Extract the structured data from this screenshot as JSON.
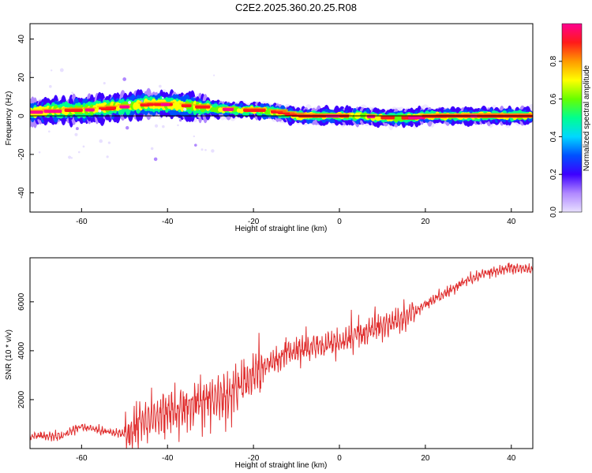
{
  "title": "C2E2.2025.360.20.25.R08",
  "colors": {
    "snr_line": "#e03030",
    "colormap": [
      "#e8e0ff",
      "#b088ff",
      "#3d00ff",
      "#0050ff",
      "#00d8ff",
      "#00ff90",
      "#66ff00",
      "#ffff00",
      "#ff9a00",
      "#ff1a1a",
      "#ff0090"
    ]
  },
  "chart_data": [
    {
      "type": "heatmap",
      "xlabel": "Height of straight line (km)",
      "ylabel": "Frequency (Hz)",
      "xlim": [
        -72,
        45
      ],
      "ylim": [
        -50,
        48
      ],
      "x_ticks": [
        -60,
        -40,
        -20,
        0,
        20,
        40
      ],
      "y_ticks": [
        -40,
        -20,
        0,
        20,
        40
      ],
      "colorbar": {
        "label": "Normalized spectral amplitude",
        "range": [
          0,
          1
        ],
        "ticks": [
          "0.0",
          "0.2",
          "0.4",
          "0.6",
          "0.8"
        ]
      },
      "ridge": [
        {
          "x": -72,
          "y": 2
        },
        {
          "x": -65,
          "y": 3
        },
        {
          "x": -60,
          "y": 3
        },
        {
          "x": -55,
          "y": 4
        },
        {
          "x": -50,
          "y": 5
        },
        {
          "x": -45,
          "y": 6
        },
        {
          "x": -40,
          "y": 6
        },
        {
          "x": -35,
          "y": 5
        },
        {
          "x": -30,
          "y": 4
        },
        {
          "x": -25,
          "y": 3
        },
        {
          "x": -20,
          "y": 3
        },
        {
          "x": -15,
          "y": 2
        },
        {
          "x": -10,
          "y": 0
        },
        {
          "x": -5,
          "y": 0
        },
        {
          "x": 0,
          "y": 0
        },
        {
          "x": 5,
          "y": 0
        },
        {
          "x": 10,
          "y": -1
        },
        {
          "x": 15,
          "y": -1
        },
        {
          "x": 20,
          "y": 0
        },
        {
          "x": 30,
          "y": 0
        },
        {
          "x": 40,
          "y": 0
        },
        {
          "x": 45,
          "y": 0
        }
      ],
      "reference_line_y": 0
    },
    {
      "type": "line",
      "xlabel": "Height of straight line (km)",
      "ylabel": "SNR (10 * v/v)",
      "xlim": [
        -72,
        45
      ],
      "ylim": [
        0,
        7800
      ],
      "x_ticks": [
        -60,
        -40,
        -20,
        0,
        20,
        40
      ],
      "y_ticks": [
        2000,
        4000,
        6000
      ],
      "series": [
        {
          "trend": [
            {
              "x": -72,
              "y": 500
            },
            {
              "x": -65,
              "y": 500
            },
            {
              "x": -60,
              "y": 900
            },
            {
              "x": -55,
              "y": 700
            },
            {
              "x": -50,
              "y": 600
            },
            {
              "x": -45,
              "y": 1200
            },
            {
              "x": -40,
              "y": 1500
            },
            {
              "x": -35,
              "y": 1700
            },
            {
              "x": -30,
              "y": 2000
            },
            {
              "x": -25,
              "y": 2300
            },
            {
              "x": -20,
              "y": 3000
            },
            {
              "x": -15,
              "y": 3600
            },
            {
              "x": -10,
              "y": 4000
            },
            {
              "x": -5,
              "y": 4200
            },
            {
              "x": 0,
              "y": 4300
            },
            {
              "x": 5,
              "y": 4700
            },
            {
              "x": 10,
              "y": 5000
            },
            {
              "x": 15,
              "y": 5300
            },
            {
              "x": 20,
              "y": 5900
            },
            {
              "x": 25,
              "y": 6400
            },
            {
              "x": 30,
              "y": 6900
            },
            {
              "x": 35,
              "y": 7200
            },
            {
              "x": 40,
              "y": 7400
            },
            {
              "x": 45,
              "y": 7300
            }
          ]
        }
      ]
    }
  ]
}
